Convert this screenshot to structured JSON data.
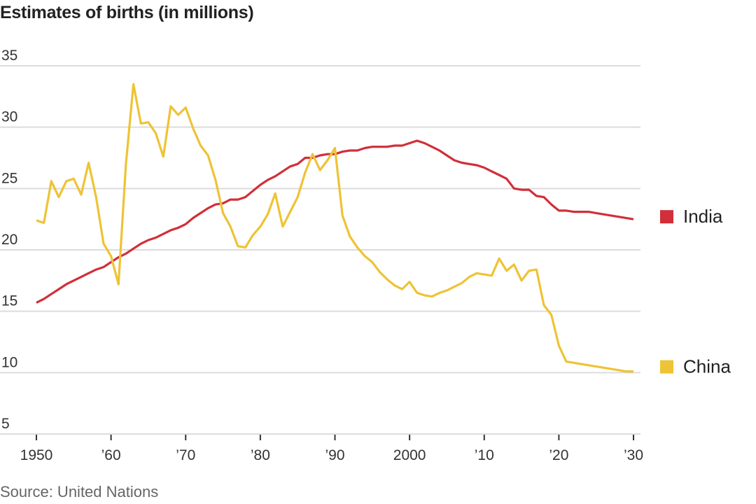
{
  "title": "Estimates of births (in millions)",
  "source": "Source: United Nations",
  "chart_data": {
    "type": "line",
    "title": "Estimates of births (in millions)",
    "xlabel": "",
    "ylabel": "",
    "xlim": [
      1950,
      2030
    ],
    "ylim": [
      5,
      35
    ],
    "grid": true,
    "legend_placement": "right, at line ends",
    "y_ticks": [
      {
        "value": 5,
        "label": "5"
      },
      {
        "value": 10,
        "label": "10"
      },
      {
        "value": 15,
        "label": "15"
      },
      {
        "value": 20,
        "label": "20"
      },
      {
        "value": 25,
        "label": "25"
      },
      {
        "value": 30,
        "label": "30"
      },
      {
        "value": 35,
        "label": "35"
      }
    ],
    "x_ticks": [
      {
        "value": 1950,
        "label": "1950"
      },
      {
        "value": 1960,
        "label": "’60"
      },
      {
        "value": 1970,
        "label": "’70"
      },
      {
        "value": 1980,
        "label": "’80"
      },
      {
        "value": 1990,
        "label": "’90"
      },
      {
        "value": 2000,
        "label": "2000"
      },
      {
        "value": 2010,
        "label": "’10"
      },
      {
        "value": 2020,
        "label": "’20"
      },
      {
        "value": 2030,
        "label": "’30"
      }
    ],
    "x_start": 1950,
    "series": [
      {
        "name": "India",
        "color": "#d12f3a",
        "values": [
          15.7,
          16.0,
          16.4,
          16.8,
          17.2,
          17.5,
          17.8,
          18.1,
          18.4,
          18.6,
          19.0,
          19.4,
          19.7,
          20.1,
          20.5,
          20.8,
          21.0,
          21.3,
          21.6,
          21.8,
          22.1,
          22.6,
          23.0,
          23.4,
          23.7,
          23.8,
          24.1,
          24.1,
          24.3,
          24.8,
          25.3,
          25.7,
          26.0,
          26.4,
          26.8,
          27.0,
          27.5,
          27.5,
          27.7,
          27.8,
          27.8,
          28.0,
          28.1,
          28.1,
          28.3,
          28.4,
          28.4,
          28.4,
          28.5,
          28.5,
          28.7,
          28.9,
          28.7,
          28.4,
          28.1,
          27.7,
          27.3,
          27.1,
          27.0,
          26.9,
          26.7,
          26.4,
          26.1,
          25.8,
          25.0,
          24.9,
          24.9,
          24.4,
          24.3,
          23.7,
          23.2,
          23.2,
          23.1,
          23.1,
          23.1,
          23.0,
          22.9,
          22.8,
          22.7,
          22.6,
          22.5
        ]
      },
      {
        "name": "China",
        "color": "#eec335",
        "values": [
          22.4,
          22.2,
          25.6,
          24.3,
          25.6,
          25.8,
          24.5,
          27.1,
          24.3,
          20.5,
          19.5,
          17.2,
          27.0,
          33.5,
          30.3,
          30.4,
          29.5,
          27.6,
          31.7,
          31.0,
          31.6,
          29.9,
          28.5,
          27.7,
          25.7,
          23.0,
          21.9,
          20.3,
          20.2,
          21.2,
          21.9,
          22.9,
          24.6,
          21.9,
          23.1,
          24.3,
          26.3,
          27.8,
          26.5,
          27.3,
          28.3,
          22.8,
          21.1,
          20.2,
          19.5,
          19.0,
          18.2,
          17.6,
          17.1,
          16.8,
          17.4,
          16.5,
          16.3,
          16.2,
          16.5,
          16.7,
          17.0,
          17.3,
          17.8,
          18.1,
          18.0,
          17.9,
          19.3,
          18.3,
          18.8,
          17.5,
          18.3,
          18.4,
          15.5,
          14.7,
          12.2,
          10.9,
          10.8,
          10.7,
          10.6,
          10.5,
          10.4,
          10.3,
          10.2,
          10.1,
          10.1
        ]
      }
    ]
  }
}
